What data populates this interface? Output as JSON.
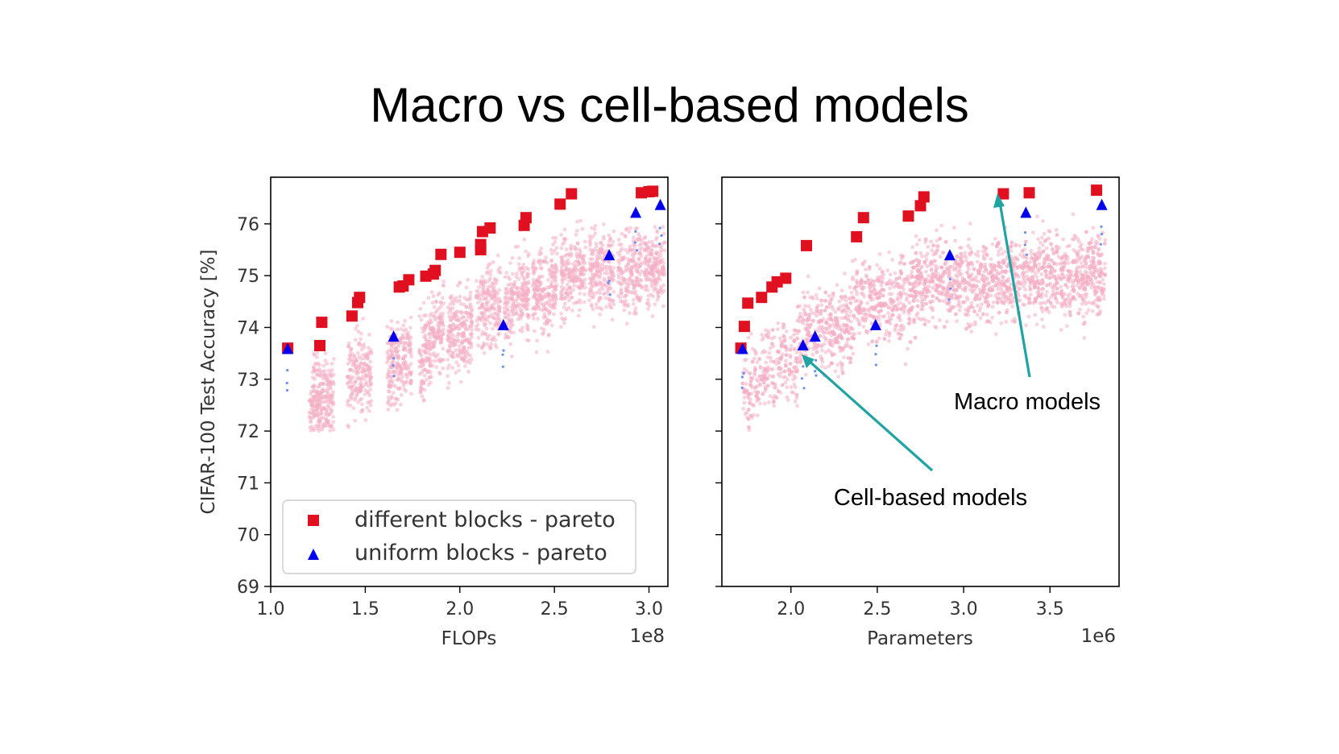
{
  "slide": {
    "title": "Macro vs cell-based models"
  },
  "colors": {
    "different": "#e01020",
    "uniform": "#0000ee",
    "cloud": "#f4aec4",
    "arrow": "#22a3a3"
  },
  "chart_data": [
    {
      "type": "scatter",
      "title": "",
      "xlabel": "FLOPs",
      "ylabel": "CIFAR-100 Test Accuracy [%]",
      "x_offset_label": "1e8",
      "xlim": [
        1.0,
        3.1
      ],
      "ylim": [
        69,
        76.9
      ],
      "xticks": [
        1.0,
        1.5,
        2.0,
        2.5,
        3.0
      ],
      "xtick_labels": [
        "1.0",
        "1.5",
        "2.0",
        "2.5",
        "3.0"
      ],
      "yticks": [
        69,
        70,
        71,
        72,
        73,
        74,
        75,
        76
      ],
      "ytick_labels": [
        "69",
        "70",
        "71",
        "72",
        "73",
        "74",
        "75",
        "76"
      ],
      "legend": {
        "location": "lower-left",
        "entries": [
          "different blocks - pareto",
          "uniform blocks - pareto"
        ]
      },
      "series": [
        {
          "name": "different blocks - pareto",
          "marker": "square",
          "x": [
            1.09,
            1.26,
            1.27,
            1.43,
            1.46,
            1.47,
            1.68,
            1.7,
            1.73,
            1.82,
            1.86,
            1.87,
            1.9,
            2.0,
            2.11,
            2.11,
            2.12,
            2.16,
            2.34,
            2.35,
            2.53,
            2.59,
            2.96,
            3.0,
            3.02
          ],
          "y": [
            73.6,
            73.65,
            74.1,
            74.22,
            74.48,
            74.58,
            74.78,
            74.8,
            74.92,
            74.99,
            75.03,
            75.1,
            75.41,
            75.45,
            75.5,
            75.6,
            75.85,
            75.92,
            75.97,
            76.12,
            76.38,
            76.58,
            76.6,
            76.62,
            76.63
          ]
        },
        {
          "name": "uniform blocks - pareto",
          "marker": "triangle",
          "x": [
            1.09,
            1.65,
            2.23,
            2.79,
            2.93,
            3.06
          ],
          "y": [
            73.58,
            73.82,
            74.04,
            75.39,
            76.21,
            76.36
          ]
        }
      ]
    },
    {
      "type": "scatter",
      "title": "",
      "xlabel": "Parameters",
      "ylabel": "",
      "x_offset_label": "1e6",
      "xlim": [
        1.6,
        3.9
      ],
      "ylim": [
        69,
        76.9
      ],
      "xticks": [
        2.0,
        2.5,
        3.0,
        3.5
      ],
      "xtick_labels": [
        "2.0",
        "2.5",
        "3.0",
        "3.5"
      ],
      "yticks": [
        69,
        70,
        71,
        72,
        73,
        74,
        75,
        76
      ],
      "ytick_labels": [],
      "series": [
        {
          "name": "different blocks - pareto",
          "marker": "square",
          "x": [
            1.71,
            1.73,
            1.75,
            1.83,
            1.89,
            1.92,
            1.97,
            2.09,
            2.38,
            2.42,
            2.68,
            2.75,
            2.77,
            3.23,
            3.38,
            3.77
          ],
          "y": [
            73.6,
            74.02,
            74.47,
            74.58,
            74.78,
            74.88,
            74.95,
            75.58,
            75.75,
            76.12,
            76.15,
            76.35,
            76.52,
            76.58,
            76.6,
            76.65
          ]
        },
        {
          "name": "uniform blocks - pareto",
          "marker": "triangle",
          "x": [
            1.72,
            2.07,
            2.14,
            2.49,
            2.92,
            3.36,
            3.8
          ],
          "y": [
            73.58,
            73.65,
            73.82,
            74.04,
            75.39,
            76.21,
            76.36
          ]
        }
      ],
      "annotations": [
        {
          "text": "Macro models",
          "target": [
            3.2,
            76.45
          ]
        },
        {
          "text": "Cell-based models",
          "target": [
            2.07,
            73.48
          ]
        }
      ]
    }
  ]
}
